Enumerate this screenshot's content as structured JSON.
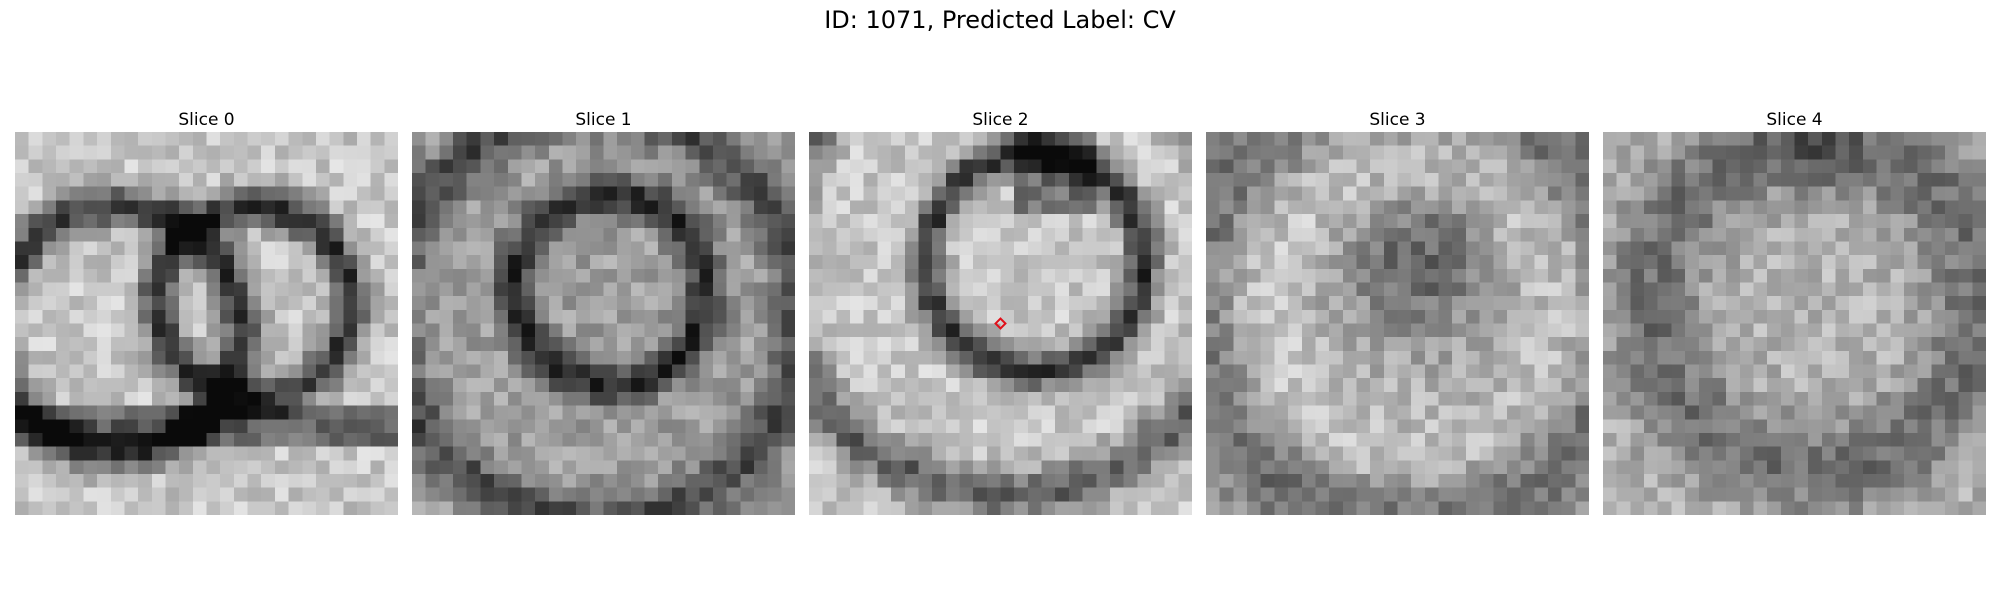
{
  "title": "ID: 1071, Predicted Label: CV",
  "slices": [
    {
      "label": "Slice 0",
      "pattern": "double-ring"
    },
    {
      "label": "Slice 1",
      "pattern": "ring"
    },
    {
      "label": "Slice 2",
      "pattern": "ring-marked"
    },
    {
      "label": "Slice 3",
      "pattern": "dark-core"
    },
    {
      "label": "Slice 4",
      "pattern": "faint"
    }
  ],
  "marker": {
    "slice": 2,
    "shape": "diamond",
    "color": "#e0101a"
  },
  "grid_size": 28
}
